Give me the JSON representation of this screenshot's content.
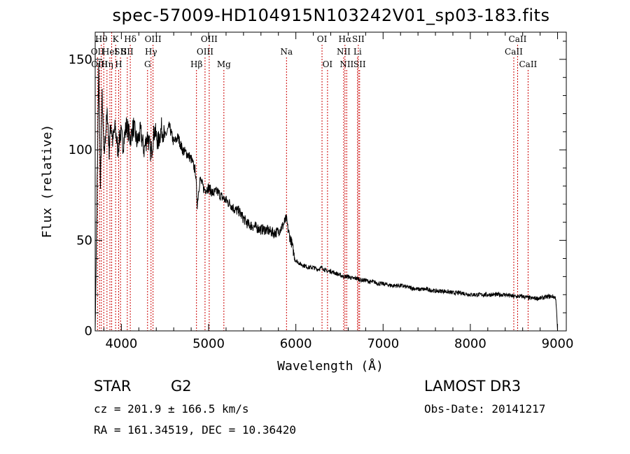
{
  "chart_data": {
    "type": "line",
    "title": "spec-57009-HD104915N103242V01_sp03-183.fits",
    "xlabel": "Wavelength (Å)",
    "ylabel": "Flux (relative)",
    "xlim": [
      3700,
      9100
    ],
    "ylim": [
      0,
      165
    ],
    "xticks": [
      4000,
      5000,
      6000,
      7000,
      8000,
      9000
    ],
    "yticks": [
      0,
      50,
      100,
      150
    ],
    "series": [
      {
        "name": "flux",
        "x": [
          3700,
          3720,
          3740,
          3760,
          3780,
          3800,
          3820,
          3840,
          3860,
          3880,
          3900,
          3930,
          3960,
          3990,
          4020,
          4060,
          4100,
          4140,
          4180,
          4220,
          4260,
          4300,
          4340,
          4380,
          4420,
          4460,
          4500,
          4550,
          4600,
          4650,
          4700,
          4750,
          4800,
          4850,
          4870,
          4900,
          4950,
          5000,
          5050,
          5100,
          5150,
          5200,
          5250,
          5300,
          5350,
          5400,
          5450,
          5500,
          5550,
          5600,
          5650,
          5700,
          5750,
          5800,
          5850,
          5870,
          5890,
          5910,
          5930,
          5950,
          5980,
          6000,
          6050,
          6100,
          6150,
          6200,
          6250,
          6300,
          6350,
          6400,
          6450,
          6500,
          6550,
          6600,
          6650,
          6700,
          6750,
          6800,
          6850,
          6900,
          6950,
          7000,
          7100,
          7200,
          7300,
          7400,
          7500,
          7600,
          7700,
          7800,
          7900,
          8000,
          8100,
          8200,
          8300,
          8400,
          8500,
          8600,
          8700,
          8800,
          8900,
          8950,
          8980,
          9000
        ],
        "y": [
          0,
          70,
          145,
          80,
          130,
          95,
          110,
          120,
          100,
          115,
          105,
          112,
          100,
          110,
          103,
          114,
          106,
          113,
          104,
          110,
          100,
          108,
          98,
          111,
          104,
          112,
          107,
          113,
          104,
          107,
          100,
          98,
          95,
          88,
          70,
          84,
          78,
          79,
          76,
          77,
          74,
          72,
          70,
          67,
          66,
          62,
          59,
          58,
          57,
          56,
          56,
          55,
          54,
          55,
          58,
          60,
          62,
          56,
          52,
          49,
          42,
          39,
          37,
          36,
          35,
          35,
          34,
          35,
          33,
          33,
          32,
          31,
          30,
          30,
          29,
          29,
          28,
          28,
          27,
          27,
          26,
          26,
          25,
          25,
          24,
          23,
          23,
          22,
          22,
          21,
          21,
          20,
          20,
          20,
          20,
          20,
          19,
          19,
          18,
          18,
          19,
          19,
          18,
          0
        ]
      }
    ],
    "lines": [
      {
        "w": 3727,
        "label": "OII",
        "row": 1
      },
      {
        "w": 3750,
        "label": "OIII",
        "row": 2
      },
      {
        "w": 3770,
        "label": "Hθ",
        "row": 0
      },
      {
        "w": 3798,
        "label": "",
        "row": -1
      },
      {
        "w": 3835,
        "label": "Hη",
        "row": 2
      },
      {
        "w": 3869,
        "label": "HeI",
        "row": 1
      },
      {
        "w": 3889,
        "label": "",
        "row": -1
      },
      {
        "w": 3934,
        "label": "K",
        "row": 0
      },
      {
        "w": 3969,
        "label": "H",
        "row": 2
      },
      {
        "w": 3990,
        "label": "SII",
        "row": 1
      },
      {
        "w": 4102,
        "label": "Hδ",
        "row": 0
      },
      {
        "w": 4068,
        "label": "SII",
        "row": 1
      },
      {
        "w": 4300,
        "label": "G",
        "row": 2
      },
      {
        "w": 4340,
        "label": "Hγ",
        "row": 1
      },
      {
        "w": 4363,
        "label": "OIII",
        "row": 0
      },
      {
        "w": 4861,
        "label": "Hβ",
        "row": 2
      },
      {
        "w": 4959,
        "label": "OIII",
        "row": 1
      },
      {
        "w": 5007,
        "label": "OIII",
        "row": 0
      },
      {
        "w": 5175,
        "label": "Mg",
        "row": 2
      },
      {
        "w": 5893,
        "label": "Na",
        "row": 1
      },
      {
        "w": 6300,
        "label": "OI",
        "row": 0
      },
      {
        "w": 6363,
        "label": "OI",
        "row": 2
      },
      {
        "w": 6548,
        "label": "NII",
        "row": 1
      },
      {
        "w": 6563,
        "label": "Hα",
        "row": 0
      },
      {
        "w": 6583,
        "label": "NII",
        "row": 2
      },
      {
        "w": 6707,
        "label": "Li",
        "row": 1
      },
      {
        "w": 6716,
        "label": "SII",
        "row": 0
      },
      {
        "w": 6731,
        "label": "SII",
        "row": 2
      },
      {
        "w": 8498,
        "label": "CaII",
        "row": 1
      },
      {
        "w": 8542,
        "label": "CaII",
        "row": 0
      },
      {
        "w": 8662,
        "label": "CaII",
        "row": 2
      }
    ]
  },
  "info": {
    "class": "STAR",
    "subclass": "G2",
    "survey": "LAMOST DR3",
    "cz": "cz = 201.9 ± 166.5 km/s",
    "obs_date": "Obs-Date: 20141217",
    "coords": "RA = 161.34519, DEC =  10.36420"
  }
}
